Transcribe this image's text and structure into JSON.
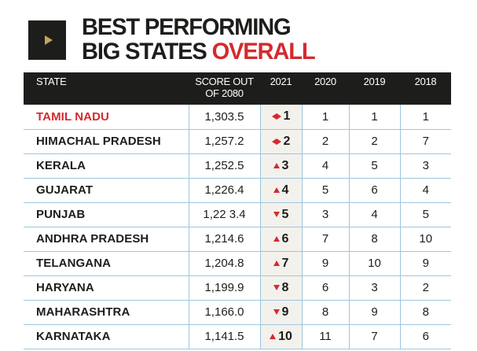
{
  "header": {
    "icon": "play-icon",
    "title_line1": "BEST PERFORMING",
    "title_line2_black": "BIG STATES ",
    "title_line2_red": "OVERALL"
  },
  "colors": {
    "accent": "#d42a2f",
    "header_bg": "#1d1d1b",
    "grid": "#9ec6df",
    "rank_bg": "#f3f1ec"
  },
  "table": {
    "columns": [
      "STATE",
      "SCORE OUT OF 2080",
      "2021",
      "2020",
      "2019",
      "2018"
    ],
    "rows": [
      {
        "state": "TAMIL NADU",
        "score": "1,303.5",
        "trend": "same",
        "rank_2021": "1",
        "rank_2020": "1",
        "rank_2019": "1",
        "rank_2018": "1"
      },
      {
        "state": "HIMACHAL PRADESH",
        "score": "1,257.2",
        "trend": "same",
        "rank_2021": "2",
        "rank_2020": "2",
        "rank_2019": "2",
        "rank_2018": "7"
      },
      {
        "state": "KERALA",
        "score": "1,252.5",
        "trend": "up",
        "rank_2021": "3",
        "rank_2020": "4",
        "rank_2019": "5",
        "rank_2018": "3"
      },
      {
        "state": "GUJARAT",
        "score": "1,226.4",
        "trend": "up",
        "rank_2021": "4",
        "rank_2020": "5",
        "rank_2019": "6",
        "rank_2018": "4"
      },
      {
        "state": "PUNJAB",
        "score": "1,22 3.4",
        "trend": "down",
        "rank_2021": "5",
        "rank_2020": "3",
        "rank_2019": "4",
        "rank_2018": "5"
      },
      {
        "state": "ANDHRA PRADESH",
        "score": "1,214.6",
        "trend": "up",
        "rank_2021": "6",
        "rank_2020": "7",
        "rank_2019": "8",
        "rank_2018": "10"
      },
      {
        "state": "TELANGANA",
        "score": "1,204.8",
        "trend": "up",
        "rank_2021": "7",
        "rank_2020": "9",
        "rank_2019": "10",
        "rank_2018": "9"
      },
      {
        "state": "HARYANA",
        "score": "1,199.9",
        "trend": "down",
        "rank_2021": "8",
        "rank_2020": "6",
        "rank_2019": "3",
        "rank_2018": "2"
      },
      {
        "state": "MAHARASHTRA",
        "score": "1,166.0",
        "trend": "down",
        "rank_2021": "9",
        "rank_2020": "8",
        "rank_2019": "9",
        "rank_2018": "8"
      },
      {
        "state": "KARNATAKA",
        "score": "1,141.5",
        "trend": "up",
        "rank_2021": "10",
        "rank_2020": "11",
        "rank_2019": "7",
        "rank_2018": "6"
      }
    ]
  }
}
